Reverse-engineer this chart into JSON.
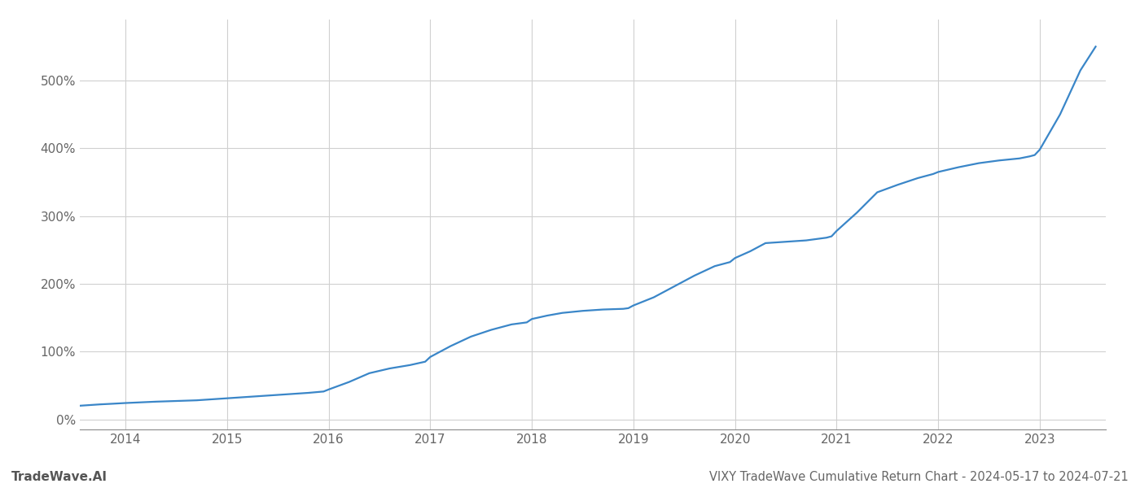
{
  "title": "VIXY TradeWave Cumulative Return Chart - 2024-05-17 to 2024-07-21",
  "watermark": "TradeWave.AI",
  "line_color": "#3a86c8",
  "background_color": "#ffffff",
  "grid_color": "#d0d0d0",
  "x_years": [
    2014,
    2015,
    2016,
    2017,
    2018,
    2019,
    2020,
    2021,
    2022,
    2023
  ],
  "x_values": [
    2013.55,
    2013.65,
    2013.75,
    2013.88,
    2014.0,
    2014.15,
    2014.3,
    2014.5,
    2014.7,
    2014.9,
    2015.0,
    2015.2,
    2015.4,
    2015.6,
    2015.8,
    2015.95,
    2016.0,
    2016.2,
    2016.4,
    2016.6,
    2016.8,
    2016.95,
    2017.0,
    2017.2,
    2017.4,
    2017.6,
    2017.8,
    2017.95,
    2018.0,
    2018.15,
    2018.3,
    2018.5,
    2018.7,
    2018.9,
    2018.95,
    2019.0,
    2019.2,
    2019.4,
    2019.6,
    2019.8,
    2019.95,
    2020.0,
    2020.15,
    2020.3,
    2020.5,
    2020.7,
    2020.9,
    2020.95,
    2021.0,
    2021.2,
    2021.4,
    2021.6,
    2021.8,
    2021.95,
    2022.0,
    2022.2,
    2022.4,
    2022.6,
    2022.8,
    2022.9,
    2022.95,
    2023.0,
    2023.2,
    2023.4,
    2023.55
  ],
  "y_values": [
    20,
    21,
    22,
    23,
    24,
    25,
    26,
    27,
    28,
    30,
    31,
    33,
    35,
    37,
    39,
    41,
    44,
    55,
    68,
    75,
    80,
    85,
    92,
    108,
    122,
    132,
    140,
    143,
    148,
    153,
    157,
    160,
    162,
    163,
    164,
    168,
    180,
    196,
    212,
    226,
    232,
    238,
    248,
    260,
    262,
    264,
    268,
    270,
    278,
    305,
    335,
    346,
    356,
    362,
    365,
    372,
    378,
    382,
    385,
    388,
    390,
    398,
    450,
    515,
    550
  ],
  "ylim": [
    -15,
    590
  ],
  "yticks": [
    0,
    100,
    200,
    300,
    400,
    500
  ],
  "xlim": [
    2013.55,
    2023.65
  ],
  "title_fontsize": 10.5,
  "tick_fontsize": 11,
  "watermark_fontsize": 11,
  "line_width": 1.6
}
